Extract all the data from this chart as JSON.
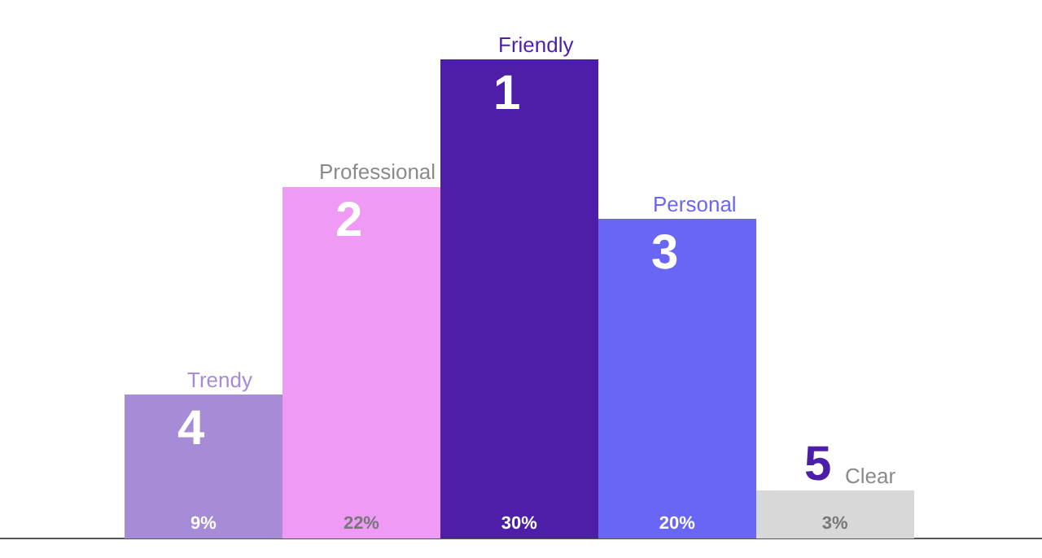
{
  "chart_data": {
    "type": "bar",
    "categories": [
      "Trendy",
      "Professional",
      "Friendly",
      "Personal",
      "Clear"
    ],
    "values": [
      9,
      22,
      30,
      20,
      3
    ],
    "colors": [
      "#a68bd6",
      "#ef9af5",
      "#4d1fa9",
      "#6a66f5",
      "#d8d8d8"
    ],
    "value_labels": [
      "9%",
      "22%",
      "30%",
      "20%",
      "3%"
    ],
    "annotations": [
      "4",
      "2",
      "1",
      "3",
      "5"
    ],
    "grid": false,
    "legend": false
  }
}
